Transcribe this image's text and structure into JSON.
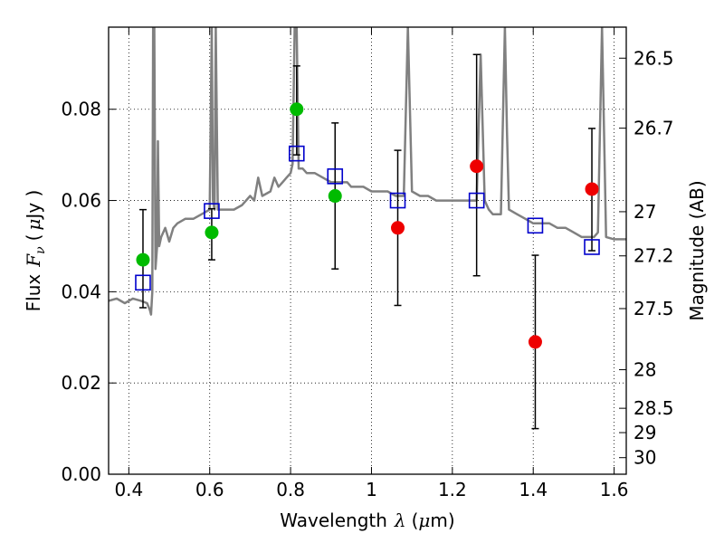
{
  "chart_data": {
    "type": "scatter",
    "title": "",
    "xlabel": "Wavelength",
    "xlabel_symbol": "λ",
    "xlabel_unit_open": "(",
    "xlabel_unit_mu": "μ",
    "xlabel_unit_rest": "m)",
    "ylabel_prefix": "Flux",
    "ylabel_symbol": "F",
    "ylabel_sub": "ν",
    "ylabel_unit_open": "(",
    "ylabel_unit_mu": "μ",
    "ylabel_unit_rest": "Jy )",
    "y2label": "Magnitude (AB)",
    "xlim": [
      0.35,
      1.63
    ],
    "ylim": [
      0.0,
      0.098
    ],
    "grid": true,
    "x_ticks": [
      0.4,
      0.6,
      0.8,
      1.0,
      1.2,
      1.4,
      1.6
    ],
    "x_tick_labels": [
      "0.4",
      "0.6",
      "0.8",
      "1",
      "1.2",
      "1.4",
      "1.6"
    ],
    "y_ticks": [
      0.0,
      0.02,
      0.04,
      0.06,
      0.08
    ],
    "y_tick_labels": [
      "0.00",
      "0.02",
      "0.04",
      "0.06",
      "0.08"
    ],
    "y2_ticks": [
      26.5,
      26.7,
      27.0,
      27.2,
      27.5,
      28.0,
      28.5,
      29.0,
      30.0
    ],
    "y2_tick_labels": [
      "26.5",
      "26.7",
      "27",
      "27.2",
      "27.5",
      "28",
      "28.5",
      "29",
      "30"
    ],
    "colors": {
      "model": "#808080",
      "green": "#00bb00",
      "red": "#ee0000",
      "blue": "#0000cc",
      "errorbar": "#000000",
      "grid": "#000000"
    },
    "model_spectrum": {
      "x": [
        0.35,
        0.37,
        0.39,
        0.41,
        0.43,
        0.445,
        0.452,
        0.455,
        0.458,
        0.46,
        0.463,
        0.466,
        0.47,
        0.472,
        0.475,
        0.48,
        0.49,
        0.5,
        0.51,
        0.52,
        0.54,
        0.56,
        0.58,
        0.6,
        0.605,
        0.608,
        0.612,
        0.615,
        0.62,
        0.64,
        0.66,
        0.68,
        0.7,
        0.71,
        0.72,
        0.73,
        0.75,
        0.76,
        0.77,
        0.78,
        0.79,
        0.8,
        0.805,
        0.81,
        0.815,
        0.82,
        0.83,
        0.84,
        0.86,
        0.88,
        0.9,
        0.92,
        0.94,
        0.95,
        0.96,
        0.98,
        1.0,
        1.02,
        1.04,
        1.06,
        1.08,
        1.09,
        1.1,
        1.12,
        1.14,
        1.16,
        1.18,
        1.2,
        1.22,
        1.24,
        1.26,
        1.27,
        1.28,
        1.29,
        1.3,
        1.32,
        1.33,
        1.335,
        1.34,
        1.36,
        1.38,
        1.4,
        1.42,
        1.44,
        1.46,
        1.48,
        1.5,
        1.52,
        1.54,
        1.55,
        1.56,
        1.57,
        1.58,
        1.6,
        1.63
      ],
      "y": [
        0.038,
        0.0385,
        0.0375,
        0.0385,
        0.038,
        0.0375,
        0.036,
        0.035,
        0.04,
        0.098,
        0.098,
        0.045,
        0.05,
        0.073,
        0.05,
        0.052,
        0.054,
        0.051,
        0.054,
        0.055,
        0.056,
        0.056,
        0.057,
        0.058,
        0.098,
        0.06,
        0.058,
        0.098,
        0.058,
        0.058,
        0.058,
        0.059,
        0.061,
        0.06,
        0.065,
        0.061,
        0.062,
        0.065,
        0.063,
        0.064,
        0.065,
        0.066,
        0.068,
        0.098,
        0.098,
        0.067,
        0.067,
        0.066,
        0.066,
        0.065,
        0.064,
        0.064,
        0.064,
        0.063,
        0.063,
        0.063,
        0.062,
        0.062,
        0.062,
        0.061,
        0.061,
        0.098,
        0.062,
        0.061,
        0.061,
        0.06,
        0.06,
        0.06,
        0.06,
        0.06,
        0.06,
        0.092,
        0.06,
        0.058,
        0.057,
        0.057,
        0.098,
        0.075,
        0.058,
        0.057,
        0.056,
        0.055,
        0.055,
        0.055,
        0.054,
        0.054,
        0.053,
        0.052,
        0.052,
        0.052,
        0.053,
        0.098,
        0.052,
        0.0515,
        0.0515
      ]
    },
    "series": [
      {
        "marker": "circle",
        "color": "green",
        "x": [
          0.435,
          0.605,
          0.815,
          0.91
        ],
        "y": [
          0.047,
          0.053,
          0.08,
          0.061
        ],
        "err_low": [
          0.0105,
          0.006,
          0.01,
          0.016
        ],
        "err_high": [
          0.011,
          0.0052,
          0.0095,
          0.016
        ]
      },
      {
        "marker": "circle",
        "color": "red",
        "x": [
          1.065,
          1.26,
          1.405,
          1.545
        ],
        "y": [
          0.054,
          0.0675,
          0.029,
          0.0625
        ],
        "err_low": [
          0.017,
          0.024,
          0.019,
          0.0135
        ],
        "err_high": [
          0.017,
          0.0245,
          0.019,
          0.0133
        ]
      },
      {
        "marker": "square",
        "color": "blue",
        "x": [
          0.435,
          0.605,
          0.815,
          0.91,
          1.065,
          1.26,
          1.405,
          1.545
        ],
        "y": [
          0.042,
          0.0577,
          0.0703,
          0.0653,
          0.06,
          0.06,
          0.0545,
          0.0498
        ]
      }
    ]
  }
}
